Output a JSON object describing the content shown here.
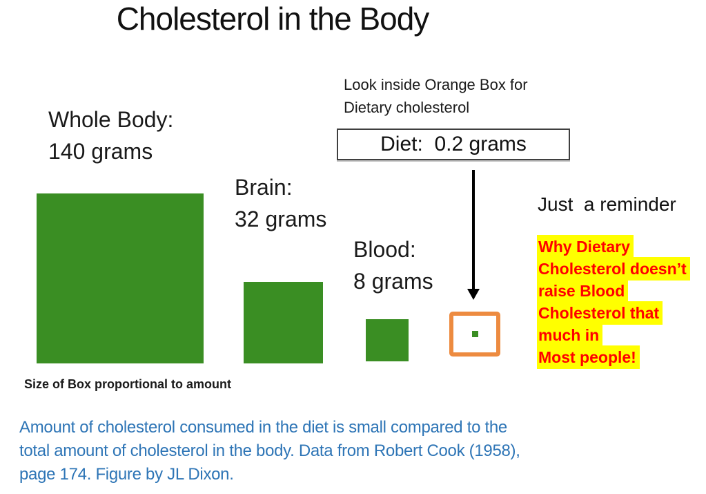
{
  "title": "Cholesterol in the Body",
  "colors": {
    "box_green": "#3A8E23",
    "orange_border": "#ED8B40",
    "reminder_red": "#FF0000",
    "highlight_yellow": "#FFFF00",
    "footnote_blue": "#2E75B6"
  },
  "annotation": {
    "line1": "Look inside Orange Box for",
    "line2": "Dietary cholesterol"
  },
  "diet_box_label": "Diet:  0.2 grams",
  "boxes": [
    {
      "name": "Whole Body:",
      "amount": "140 grams"
    },
    {
      "name": "Brain:",
      "amount": "32 grams"
    },
    {
      "name": "Blood:",
      "amount": "8 grams"
    }
  ],
  "caption": "Size of Box proportional to amount",
  "reminder": {
    "heading": "Just  a reminder",
    "lines": [
      "Why Dietary",
      "Cholesterol doesn’t",
      "raise Blood",
      "Cholesterol that",
      "much in",
      "Most people!"
    ]
  },
  "footnote_lines": [
    "Amount of cholesterol consumed in the diet is small compared to the",
    "total amount of cholesterol in the body. Data from Robert Cook (1958),",
    "page 174. Figure by JL Dixon."
  ],
  "chart_data": {
    "type": "area",
    "title": "Cholesterol in the Body",
    "categories": [
      "Whole Body",
      "Brain",
      "Blood",
      "Diet"
    ],
    "values": [
      140,
      32,
      8,
      0.2
    ],
    "unit": "grams",
    "encoding": "square box area proportional to grams; diet square shown inside orange box",
    "note": "Size of Box proportional to amount",
    "source": "Data from Robert Cook (1958), page 174. Figure by JL Dixon."
  }
}
